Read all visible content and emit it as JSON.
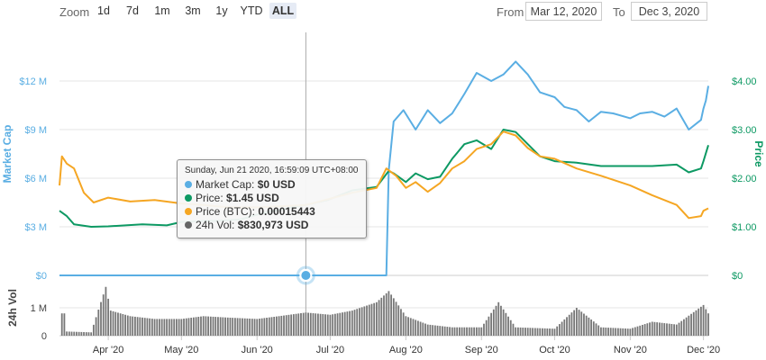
{
  "toolbar": {
    "zoom_label": "Zoom",
    "zoom_buttons": [
      {
        "label": "1d",
        "active": false
      },
      {
        "label": "7d",
        "active": false
      },
      {
        "label": "1m",
        "active": false
      },
      {
        "label": "3m",
        "active": false
      },
      {
        "label": "1y",
        "active": false
      },
      {
        "label": "YTD",
        "active": false
      },
      {
        "label": "ALL",
        "active": true
      }
    ],
    "from_label": "From",
    "from_value": "Mar 12, 2020",
    "to_label": "To",
    "to_value": "Dec 3, 2020"
  },
  "tooltip": {
    "date": "Sunday, Jun 21 2020, 16:59:09 UTC+08:00",
    "rows": [
      {
        "label": "Market Cap:",
        "value": "$0 USD",
        "color": "#5aaee3"
      },
      {
        "label": "Price:",
        "value": "$1.45 USD",
        "color": "#0d9963"
      },
      {
        "label": "Price (BTC):",
        "value": "0.00015443",
        "color": "#f5a623"
      },
      {
        "label": "24h Vol:",
        "value": "$830,973 USD",
        "color": "#666666"
      }
    ]
  },
  "chart_data": {
    "type": "line",
    "x_range": [
      "2020-03-12",
      "2020-12-03"
    ],
    "x_tick_labels": [
      "Apr '20",
      "May '20",
      "Jun '20",
      "Jul '20",
      "Aug '20",
      "Sep '20",
      "Oct '20",
      "Nov '20",
      "Dec '20"
    ],
    "left_axis": {
      "label": "Market Cap",
      "ticks": [
        "$0",
        "$3 M",
        "$6 M",
        "$9 M",
        "$12 M"
      ],
      "range": [
        0,
        15
      ],
      "unit": "M USD",
      "color": "#5aaee3"
    },
    "right_axis": {
      "label": "Price",
      "ticks": [
        "$0",
        "$1.00",
        "$2.00",
        "$3.00",
        "$4.00"
      ],
      "range": [
        0,
        5
      ],
      "unit": "USD",
      "color": "#0d9963"
    },
    "volume_axis": {
      "label": "24h Vol",
      "ticks": [
        "0",
        "1 M",
        "2 M"
      ],
      "range": [
        0,
        2
      ],
      "unit": "M USD"
    },
    "grid": true,
    "series": [
      {
        "name": "Market Cap",
        "color": "#5aaee3",
        "axis": "left",
        "points": [
          [
            "2020-03-12",
            0
          ],
          [
            "2020-04-15",
            0
          ],
          [
            "2020-05-15",
            0
          ],
          [
            "2020-06-21",
            0
          ],
          [
            "2020-07-20",
            0
          ],
          [
            "2020-07-24",
            0
          ],
          [
            "2020-07-25",
            6.5
          ],
          [
            "2020-07-27",
            9.5
          ],
          [
            "2020-07-31",
            10.2
          ],
          [
            "2020-08-05",
            9.0
          ],
          [
            "2020-08-10",
            10.2
          ],
          [
            "2020-08-15",
            9.4
          ],
          [
            "2020-08-20",
            10.0
          ],
          [
            "2020-08-25",
            11.2
          ],
          [
            "2020-08-30",
            12.5
          ],
          [
            "2020-09-05",
            12.0
          ],
          [
            "2020-09-10",
            12.4
          ],
          [
            "2020-09-15",
            13.2
          ],
          [
            "2020-09-20",
            12.4
          ],
          [
            "2020-09-25",
            11.3
          ],
          [
            "2020-10-01",
            11.0
          ],
          [
            "2020-10-05",
            10.4
          ],
          [
            "2020-10-10",
            10.2
          ],
          [
            "2020-10-15",
            9.5
          ],
          [
            "2020-10-20",
            10.1
          ],
          [
            "2020-10-25",
            10.0
          ],
          [
            "2020-11-01",
            9.7
          ],
          [
            "2020-11-05",
            10.0
          ],
          [
            "2020-11-10",
            10.1
          ],
          [
            "2020-11-15",
            9.8
          ],
          [
            "2020-11-20",
            10.3
          ],
          [
            "2020-11-25",
            9.0
          ],
          [
            "2020-11-30",
            9.6
          ],
          [
            "2020-12-01",
            10.3
          ],
          [
            "2020-12-02",
            10.8
          ],
          [
            "2020-12-03",
            11.7
          ]
        ]
      },
      {
        "name": "Price",
        "color": "#0d9963",
        "axis": "right",
        "points": [
          [
            "2020-03-12",
            1.33
          ],
          [
            "2020-03-15",
            1.22
          ],
          [
            "2020-03-18",
            1.05
          ],
          [
            "2020-03-25",
            1.0
          ],
          [
            "2020-04-01",
            1.01
          ],
          [
            "2020-04-15",
            1.05
          ],
          [
            "2020-04-25",
            1.03
          ],
          [
            "2020-05-01",
            1.1
          ],
          [
            "2020-05-10",
            1.12
          ],
          [
            "2020-05-15",
            1.12
          ],
          [
            "2020-05-25",
            1.15
          ],
          [
            "2020-06-01",
            1.25
          ],
          [
            "2020-06-10",
            1.35
          ],
          [
            "2020-06-21",
            1.45
          ],
          [
            "2020-06-30",
            1.55
          ],
          [
            "2020-07-10",
            1.75
          ],
          [
            "2020-07-20",
            1.82
          ],
          [
            "2020-07-25",
            2.15
          ],
          [
            "2020-07-27",
            2.1
          ],
          [
            "2020-08-01",
            1.92
          ],
          [
            "2020-08-05",
            2.1
          ],
          [
            "2020-08-10",
            1.98
          ],
          [
            "2020-08-15",
            2.03
          ],
          [
            "2020-08-20",
            2.4
          ],
          [
            "2020-08-25",
            2.7
          ],
          [
            "2020-08-30",
            2.78
          ],
          [
            "2020-09-05",
            2.6
          ],
          [
            "2020-09-10",
            3.0
          ],
          [
            "2020-09-15",
            2.95
          ],
          [
            "2020-09-20",
            2.7
          ],
          [
            "2020-09-25",
            2.45
          ],
          [
            "2020-10-01",
            2.35
          ],
          [
            "2020-10-10",
            2.32
          ],
          [
            "2020-10-20",
            2.25
          ],
          [
            "2020-11-01",
            2.25
          ],
          [
            "2020-11-10",
            2.25
          ],
          [
            "2020-11-20",
            2.28
          ],
          [
            "2020-11-25",
            2.12
          ],
          [
            "2020-11-30",
            2.2
          ],
          [
            "2020-12-01",
            2.35
          ],
          [
            "2020-12-03",
            2.68
          ]
        ]
      },
      {
        "name": "Price (BTC)",
        "color": "#f5a623",
        "axis": "right_scaled",
        "points": [
          [
            "2020-03-12",
            1.85
          ],
          [
            "2020-03-13",
            2.45
          ],
          [
            "2020-03-15",
            2.3
          ],
          [
            "2020-03-18",
            2.2
          ],
          [
            "2020-03-22",
            1.7
          ],
          [
            "2020-03-26",
            1.5
          ],
          [
            "2020-04-01",
            1.6
          ],
          [
            "2020-04-10",
            1.52
          ],
          [
            "2020-04-20",
            1.55
          ],
          [
            "2020-05-01",
            1.48
          ],
          [
            "2020-05-10",
            1.45
          ],
          [
            "2020-05-20",
            1.4
          ],
          [
            "2020-06-01",
            1.4
          ],
          [
            "2020-06-10",
            1.42
          ],
          [
            "2020-06-21",
            1.45
          ],
          [
            "2020-07-01",
            1.58
          ],
          [
            "2020-07-10",
            1.7
          ],
          [
            "2020-07-20",
            1.8
          ],
          [
            "2020-07-24",
            2.2
          ],
          [
            "2020-07-28",
            2.05
          ],
          [
            "2020-08-01",
            1.8
          ],
          [
            "2020-08-05",
            1.92
          ],
          [
            "2020-08-10",
            1.72
          ],
          [
            "2020-08-15",
            1.9
          ],
          [
            "2020-08-20",
            2.2
          ],
          [
            "2020-08-25",
            2.35
          ],
          [
            "2020-08-30",
            2.6
          ],
          [
            "2020-09-05",
            2.7
          ],
          [
            "2020-09-10",
            2.96
          ],
          [
            "2020-09-15",
            2.88
          ],
          [
            "2020-09-20",
            2.62
          ],
          [
            "2020-09-25",
            2.45
          ],
          [
            "2020-10-01",
            2.4
          ],
          [
            "2020-10-10",
            2.2
          ],
          [
            "2020-10-20",
            2.05
          ],
          [
            "2020-11-01",
            1.85
          ],
          [
            "2020-11-10",
            1.65
          ],
          [
            "2020-11-20",
            1.45
          ],
          [
            "2020-11-25",
            1.18
          ],
          [
            "2020-11-30",
            1.22
          ],
          [
            "2020-12-01",
            1.33
          ],
          [
            "2020-12-03",
            1.38
          ]
        ]
      },
      {
        "name": "24h Vol",
        "color": "#777777",
        "axis": "volume",
        "type": "bar",
        "points": [
          [
            "2020-03-15",
            0.15
          ],
          [
            "2020-03-25",
            0.12
          ],
          [
            "2020-03-31",
            1.75
          ],
          [
            "2020-04-02",
            0.9
          ],
          [
            "2020-04-10",
            0.7
          ],
          [
            "2020-04-20",
            0.6
          ],
          [
            "2020-05-01",
            0.6
          ],
          [
            "2020-05-10",
            0.7
          ],
          [
            "2020-05-20",
            0.65
          ],
          [
            "2020-06-01",
            0.6
          ],
          [
            "2020-06-10",
            0.7
          ],
          [
            "2020-06-21",
            0.83
          ],
          [
            "2020-07-01",
            0.75
          ],
          [
            "2020-07-10",
            0.9
          ],
          [
            "2020-07-20",
            1.2
          ],
          [
            "2020-07-25",
            1.6
          ],
          [
            "2020-08-01",
            0.7
          ],
          [
            "2020-08-10",
            0.4
          ],
          [
            "2020-08-20",
            0.3
          ],
          [
            "2020-09-01",
            0.3
          ],
          [
            "2020-09-08",
            1.2
          ],
          [
            "2020-09-15",
            0.3
          ],
          [
            "2020-10-01",
            0.25
          ],
          [
            "2020-10-10",
            1.0
          ],
          [
            "2020-10-20",
            0.3
          ],
          [
            "2020-11-01",
            0.25
          ],
          [
            "2020-11-10",
            0.5
          ],
          [
            "2020-11-20",
            0.4
          ],
          [
            "2020-12-01",
            1.1
          ],
          [
            "2020-12-03",
            0.8
          ]
        ]
      }
    ],
    "crosshair_date": "2020-06-21"
  }
}
